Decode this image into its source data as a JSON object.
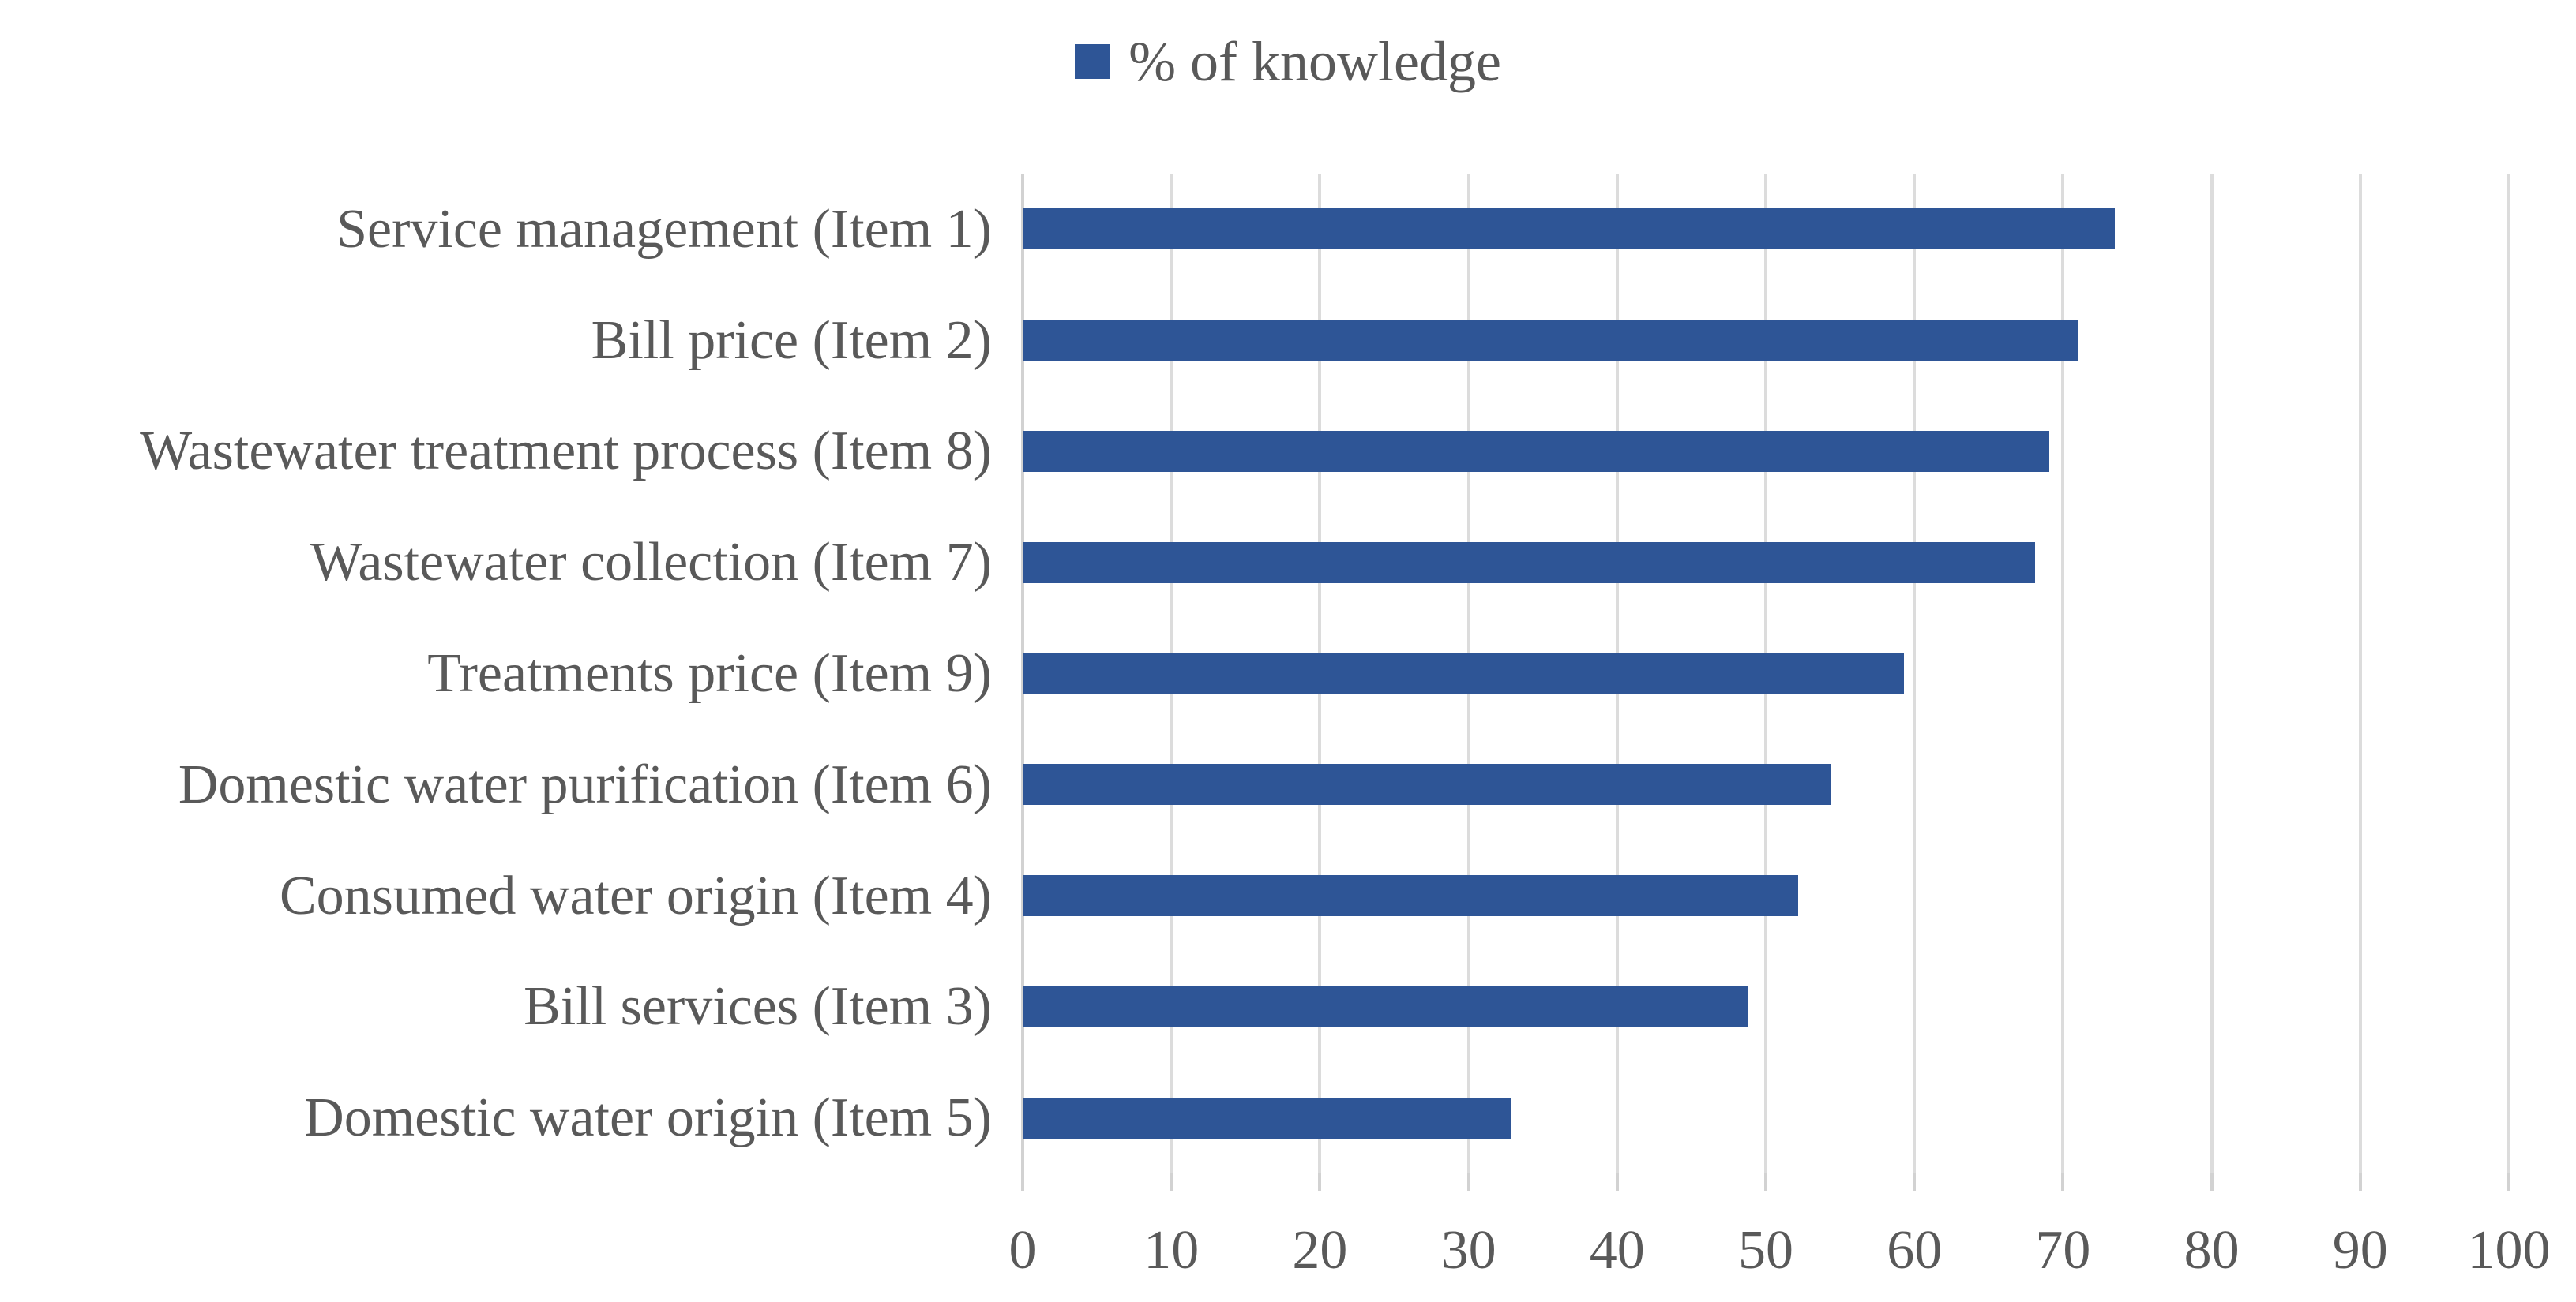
{
  "chart_data": {
    "type": "bar",
    "orientation": "horizontal",
    "title": "",
    "legend_label": "% of knowledge",
    "legend_position": "top-center",
    "categories": [
      "Service management (Item 1)",
      "Bill price (Item 2)",
      "Wastewater treatment process (Item 8)",
      "Wastewater collection (Item 7)",
      "Treatments price (Item 9)",
      "Domestic water purification (Item 6)",
      "Consumed water origin (Item 4)",
      "Bill services (Item 3)",
      "Domestic water origin (Item 5)"
    ],
    "values": [
      73.5,
      71,
      69.1,
      68.1,
      59.3,
      54.4,
      52.2,
      48.8,
      32.9
    ],
    "xlabel": "",
    "ylabel": "",
    "xlim": [
      0,
      100
    ],
    "x_ticks": [
      0,
      10,
      20,
      30,
      40,
      50,
      60,
      70,
      80,
      90,
      100
    ],
    "grid": "vertical-gridlines",
    "colors": {
      "bar": "#2e5596",
      "gridline": "#dcdcdc",
      "axis_line": "#d2d2d2",
      "text": "#595959",
      "background": "#ffffff"
    }
  }
}
